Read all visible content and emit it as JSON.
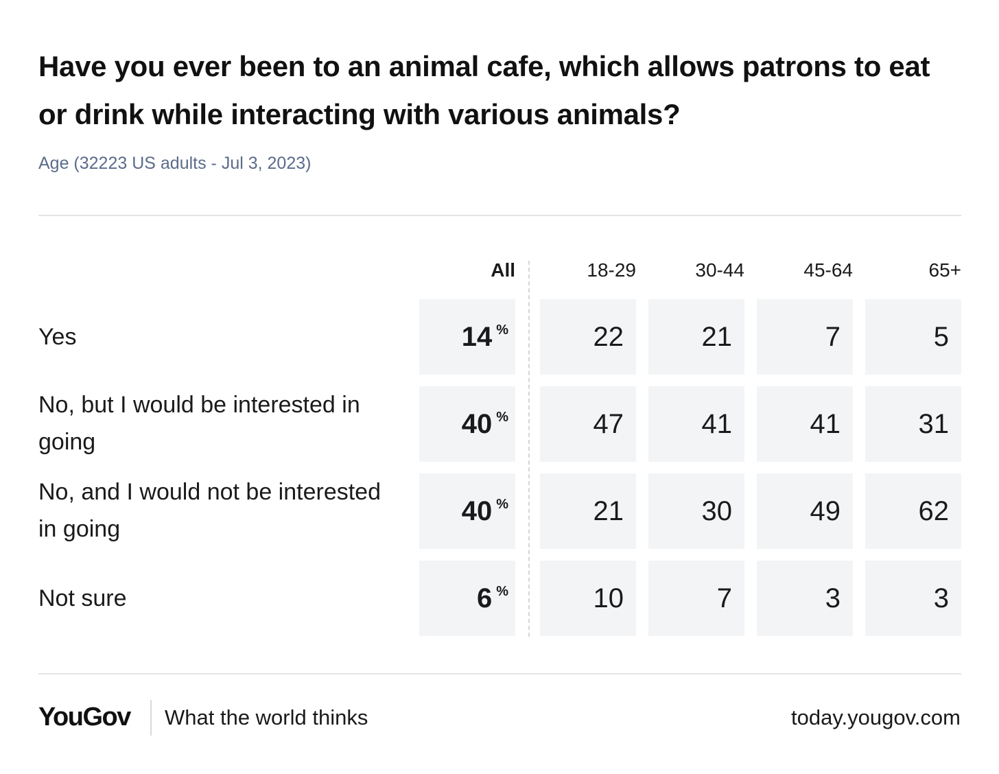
{
  "chart_data": {
    "type": "table",
    "title": "Have you ever been to an animal cafe, which allows patrons to eat or drink while interacting with various animals?",
    "subtitle": "Age (32223 US adults - Jul 3, 2023)",
    "columns": [
      "All",
      "18-29",
      "30-44",
      "45-64",
      "65+"
    ],
    "unit_symbol": "%",
    "rows": [
      {
        "label": "Yes",
        "values": [
          14,
          22,
          21,
          7,
          5
        ]
      },
      {
        "label": "No, but I would be interested in going",
        "values": [
          40,
          47,
          41,
          41,
          31
        ]
      },
      {
        "label": "No, and I would not be interested in going",
        "values": [
          40,
          21,
          30,
          49,
          62
        ]
      },
      {
        "label": "Not sure",
        "values": [
          6,
          10,
          7,
          3,
          3
        ]
      }
    ]
  },
  "footer": {
    "logo": "YouGov",
    "tagline": "What the world thinks",
    "site": "today.yougov.com"
  }
}
